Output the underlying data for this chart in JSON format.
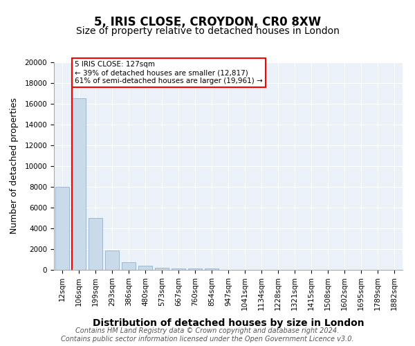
{
  "title": "5, IRIS CLOSE, CROYDON, CR0 8XW",
  "subtitle": "Size of property relative to detached houses in London",
  "xlabel": "Distribution of detached houses by size in London",
  "ylabel": "Number of detached properties",
  "categories": [
    "12sqm",
    "106sqm",
    "199sqm",
    "293sqm",
    "386sqm",
    "480sqm",
    "573sqm",
    "667sqm",
    "760sqm",
    "854sqm",
    "947sqm",
    "1041sqm",
    "1134sqm",
    "1228sqm",
    "1321sqm",
    "1415sqm",
    "1508sqm",
    "1602sqm",
    "1695sqm",
    "1789sqm",
    "1882sqm"
  ],
  "values": [
    8000,
    16500,
    5000,
    1850,
    750,
    400,
    200,
    150,
    120,
    130,
    0,
    0,
    0,
    0,
    0,
    0,
    0,
    0,
    0,
    0,
    0
  ],
  "bar_color": "#c9daea",
  "bar_edgecolor": "#a0b8d0",
  "red_line_x": 1,
  "annotation_text": "5 IRIS CLOSE: 127sqm\n← 39% of detached houses are smaller (12,817)\n61% of semi-detached houses are larger (19,961) →",
  "annotation_box_color": "white",
  "annotation_box_edgecolor": "red",
  "red_line_color": "red",
  "ylim": [
    0,
    20000
  ],
  "yticks": [
    0,
    2000,
    4000,
    6000,
    8000,
    10000,
    12000,
    14000,
    16000,
    18000,
    20000
  ],
  "footer_line1": "Contains HM Land Registry data © Crown copyright and database right 2024.",
  "footer_line2": "Contains public sector information licensed under the Open Government Licence v3.0.",
  "bg_color": "#eaf1f8",
  "title_fontsize": 12,
  "subtitle_fontsize": 10,
  "xlabel_fontsize": 10,
  "ylabel_fontsize": 9,
  "tick_fontsize": 7.5,
  "footer_fontsize": 7
}
